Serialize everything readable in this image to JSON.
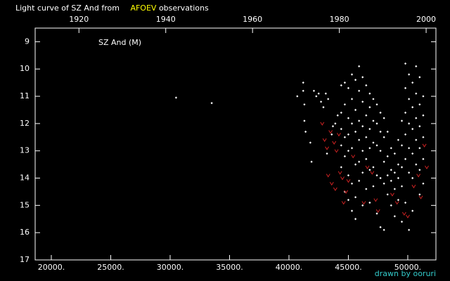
{
  "chart_data": {
    "type": "scatter",
    "title": "Light curve of SZ And from",
    "title_highlight": "AFOEV",
    "title_suffix": "observations",
    "annotation": "SZ And (M)",
    "credit": "drawn by ooruri",
    "xlim": [
      18640,
      52370
    ],
    "xticks": [
      {
        "value": 20000,
        "label": "20000."
      },
      {
        "value": 25000,
        "label": "25000."
      },
      {
        "value": 30000,
        "label": "30000."
      },
      {
        "value": 35000,
        "label": "35000."
      },
      {
        "value": 40000,
        "label": "40000."
      },
      {
        "value": 45000,
        "label": "45000."
      },
      {
        "value": 50000,
        "label": "50000."
      }
    ],
    "x2ticks": [
      {
        "value": 22325,
        "label": "1920"
      },
      {
        "value": 29630,
        "label": "1940"
      },
      {
        "value": 36935,
        "label": "1960"
      },
      {
        "value": 44240,
        "label": "1980"
      },
      {
        "value": 51545,
        "label": "2000"
      }
    ],
    "ylim": [
      17,
      8.5
    ],
    "yticks": [
      9,
      10,
      11,
      12,
      13,
      14,
      15,
      16,
      17
    ],
    "series": [
      {
        "color": "#ffffff",
        "marker": "dot",
        "x": [
          30500,
          33500,
          40700,
          41200,
          41200,
          41300,
          41300,
          41400,
          41800,
          41900,
          42100,
          42300,
          42500,
          42700,
          42900,
          43100,
          43200,
          43300,
          43600,
          43700,
          43900,
          44100,
          44400,
          44400,
          44400,
          44400,
          44400,
          44700,
          44700,
          44700,
          44700,
          44700,
          45000,
          45000,
          45000,
          45000,
          45000,
          45000,
          45300,
          45300,
          45300,
          45300,
          45300,
          45300,
          45600,
          45600,
          45600,
          45600,
          45600,
          45600,
          45900,
          45900,
          45900,
          45900,
          45900,
          45900,
          46200,
          46200,
          46200,
          46200,
          46200,
          46200,
          46500,
          46500,
          46500,
          46500,
          46500,
          46800,
          46800,
          46800,
          46800,
          46800,
          46800,
          47100,
          47100,
          47100,
          47100,
          47100,
          47400,
          47400,
          47400,
          47400,
          47400,
          47700,
          47700,
          47700,
          47700,
          47700,
          48000,
          48000,
          48000,
          48000,
          48000,
          48300,
          48300,
          48300,
          48300,
          48600,
          48600,
          48600,
          48600,
          48900,
          48900,
          48900,
          48900,
          49200,
          49200,
          49200,
          49200,
          49500,
          49500,
          49500,
          49500,
          49500,
          49800,
          49800,
          49800,
          49800,
          49800,
          49800,
          50100,
          50100,
          50100,
          50100,
          50100,
          50100,
          50400,
          50400,
          50400,
          50400,
          50400,
          50400,
          50700,
          50700,
          50700,
          50700,
          50700,
          51000,
          51000,
          51000,
          51000,
          51000,
          51000,
          51300,
          51300,
          51300,
          51300,
          51300
        ],
        "values": [
          11.05,
          11.25,
          11.0,
          10.5,
          10.8,
          11.3,
          11.9,
          12.3,
          12.7,
          13.4,
          10.8,
          11.0,
          10.9,
          11.2,
          11.4,
          10.9,
          13.1,
          11.1,
          12.4,
          12.1,
          12.0,
          11.7,
          10.6,
          11.6,
          12.2,
          12.8,
          13.6,
          10.5,
          11.3,
          12.5,
          13.2,
          14.5,
          10.7,
          11.8,
          12.4,
          13.0,
          13.9,
          14.8,
          10.2,
          11.1,
          12.0,
          12.9,
          14.2,
          15.2,
          10.4,
          11.5,
          12.3,
          13.5,
          14.7,
          15.5,
          9.9,
          10.8,
          11.9,
          12.6,
          13.4,
          14.1,
          10.3,
          11.2,
          12.1,
          13.0,
          13.8,
          15.0,
          10.6,
          11.7,
          12.5,
          13.3,
          14.4,
          10.9,
          11.4,
          12.2,
          12.9,
          13.7,
          14.9,
          11.1,
          11.9,
          12.7,
          13.6,
          14.3,
          11.3,
          12.0,
          12.8,
          13.9,
          15.3,
          11.6,
          12.3,
          13.0,
          14.0,
          15.8,
          11.8,
          12.5,
          13.4,
          14.2,
          15.9,
          12.3,
          13.2,
          13.9,
          14.6,
          12.9,
          13.7,
          14.1,
          15.0,
          13.1,
          13.8,
          14.4,
          15.4,
          12.6,
          13.5,
          14.0,
          14.8,
          11.9,
          12.8,
          13.6,
          14.3,
          15.6,
          9.8,
          10.7,
          11.6,
          12.4,
          13.3,
          14.9,
          10.2,
          11.1,
          12.0,
          12.9,
          13.8,
          15.9,
          10.5,
          11.4,
          12.2,
          13.1,
          14.0,
          15.2,
          9.9,
          10.9,
          11.8,
          12.6,
          13.5,
          10.3,
          11.3,
          12.1,
          12.9,
          13.7,
          14.6,
          11.0,
          11.7,
          12.5,
          13.3,
          14.2
        ]
      },
      {
        "color": "#cc2222",
        "marker": "v",
        "x": [
          42800,
          43000,
          43200,
          43500,
          43800,
          44000,
          44200,
          43300,
          43600,
          43900,
          44300,
          44600,
          44800,
          45000,
          44500,
          45400,
          46300,
          46600,
          47000,
          47300,
          47500,
          48700,
          49100,
          49700,
          50000,
          50500,
          51100,
          51400,
          51600,
          50900
        ],
        "values": [
          12.0,
          12.6,
          12.9,
          12.3,
          12.7,
          13.0,
          12.4,
          13.9,
          14.2,
          14.4,
          13.8,
          14.9,
          14.5,
          14.1,
          14.0,
          13.2,
          14.9,
          13.6,
          13.8,
          14.8,
          15.2,
          14.6,
          14.9,
          15.3,
          15.4,
          14.3,
          14.7,
          12.8,
          13.6,
          13.9
        ]
      }
    ]
  }
}
